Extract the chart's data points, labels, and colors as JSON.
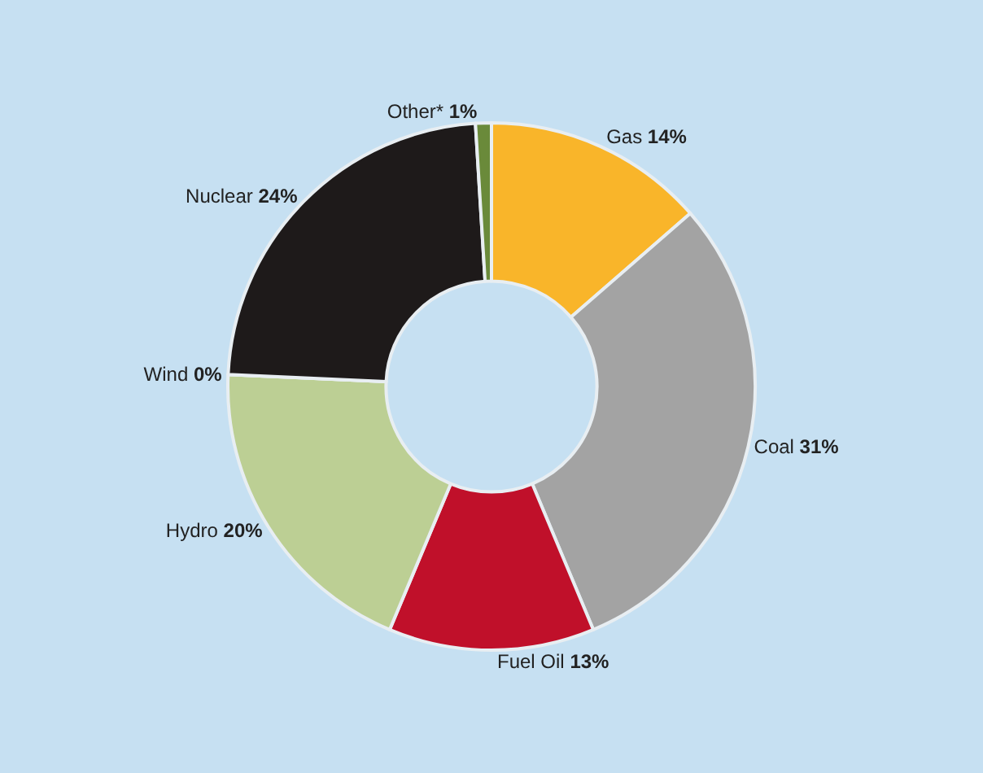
{
  "chart_data": {
    "type": "donut",
    "categories": [
      "Gas",
      "Coal",
      "Fuel Oil",
      "Hydro",
      "Wind",
      "Nuclear",
      "Other*"
    ],
    "values": [
      14,
      31,
      13,
      20,
      0,
      24,
      1
    ],
    "value_labels": [
      "14%",
      "31%",
      "13%",
      "20%",
      "0%",
      "24%",
      "1%"
    ],
    "colors": [
      "#f9b52a",
      "#a3a3a3",
      "#c0102a",
      "#bccf94",
      "#c8d8b0",
      "#1e1a1a",
      "#6a8a3a"
    ],
    "legend": false
  }
}
